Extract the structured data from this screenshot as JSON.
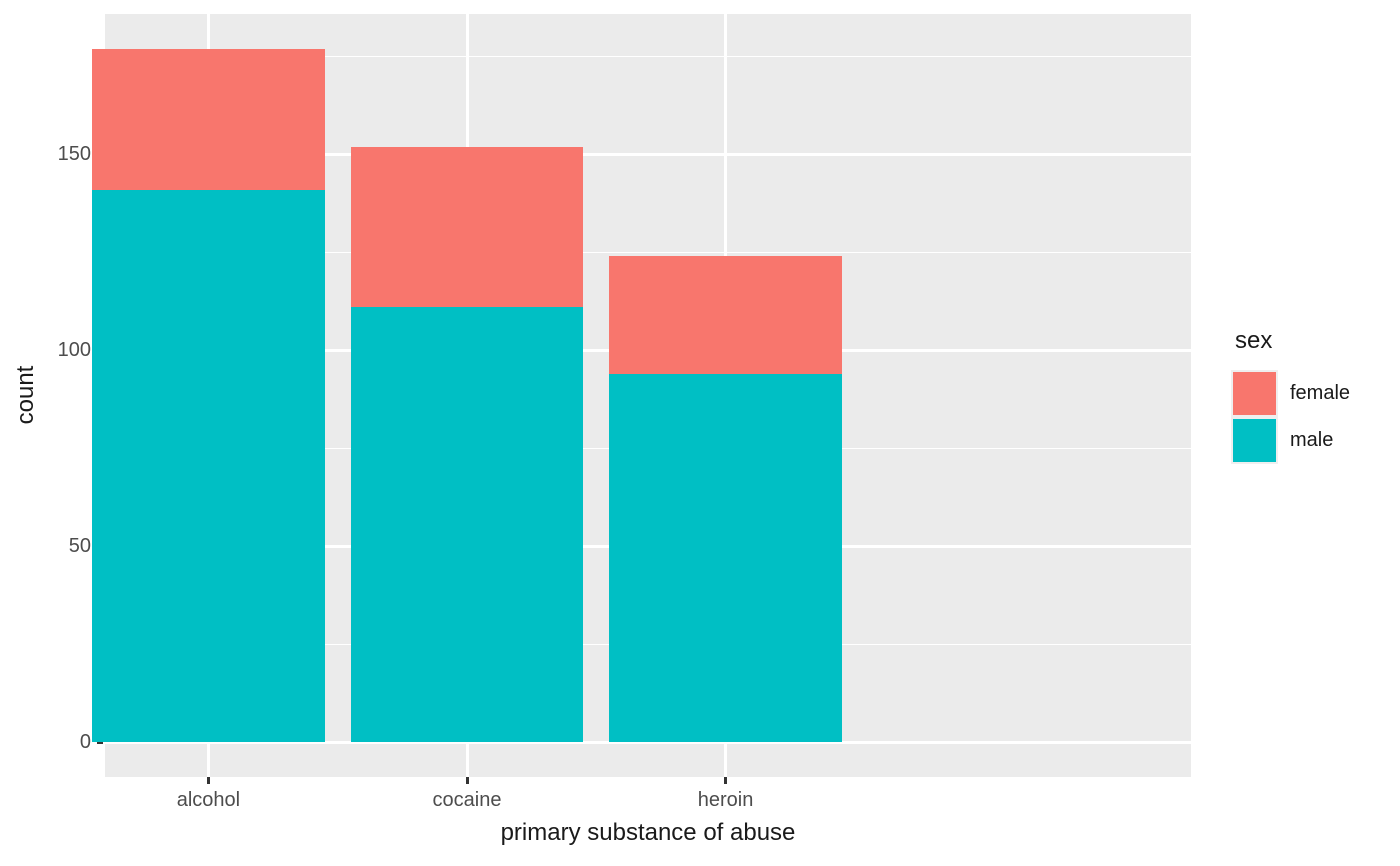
{
  "chart_data": {
    "type": "bar",
    "stacked": true,
    "title": "",
    "xlabel": "primary substance of abuse",
    "ylabel": "count",
    "categories": [
      "alcohol",
      "cocaine",
      "heroin"
    ],
    "series": [
      {
        "name": "male",
        "color": "#00BFC4",
        "values": [
          141,
          111,
          94
        ]
      },
      {
        "name": "female",
        "color": "#F8766D",
        "values": [
          36,
          41,
          30
        ]
      }
    ],
    "stack_totals": [
      177,
      152,
      124
    ],
    "y_ticks": [
      0,
      50,
      100,
      150
    ],
    "y_minor_ticks": [
      25,
      75,
      125,
      175
    ],
    "ylim": [
      -8.85,
      185.85
    ],
    "x_expand_units": 0.6,
    "bar_width_units": 0.9,
    "grid": true,
    "legend": {
      "title": "sex",
      "position": "right",
      "entries": [
        {
          "label": "female",
          "color": "#F8766D"
        },
        {
          "label": "male",
          "color": "#00BFC4"
        }
      ]
    },
    "colors": {
      "panel_bg": "#EBEBEB",
      "grid": "#FFFFFF",
      "tick_label": "#4D4D4D",
      "axis_title": "#1A1A1A",
      "tick_mark": "#333333",
      "legend_key_bg": "#EFEFEF"
    }
  }
}
